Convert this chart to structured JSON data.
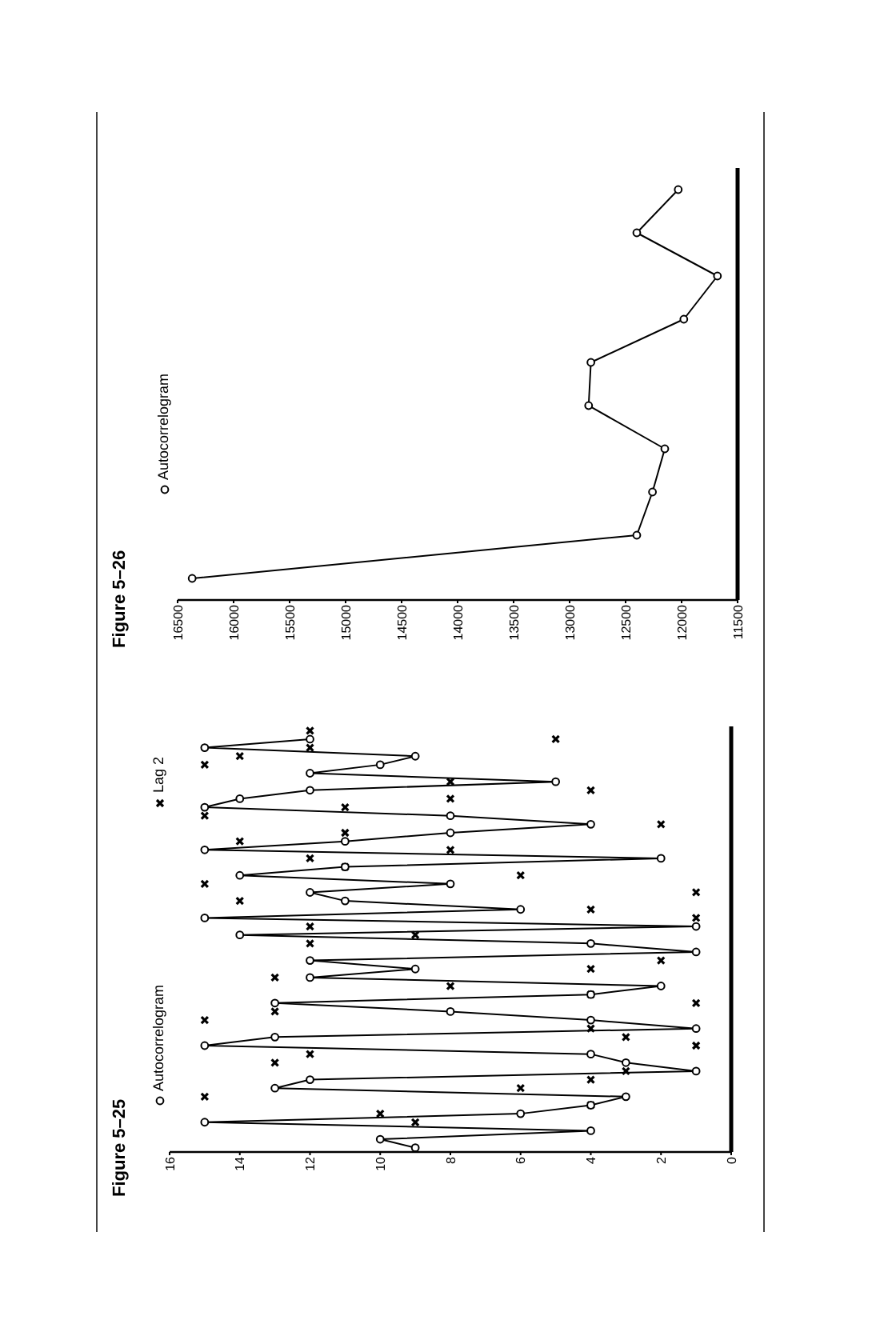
{
  "chart_data": [
    {
      "type": "line",
      "title": "Figure 5–25",
      "orientation": "horizontal",
      "categories": [
        null,
        null,
        null,
        null,
        null,
        null,
        null,
        null,
        null,
        null,
        null,
        null,
        null,
        null,
        null,
        null,
        null,
        null,
        null,
        null,
        null,
        null,
        null,
        null,
        null,
        null,
        null,
        null,
        null,
        null,
        null,
        null,
        null,
        null,
        null,
        null,
        null,
        null,
        null,
        null,
        null,
        null,
        null,
        null,
        null,
        null,
        null,
        null,
        null,
        null
      ],
      "xlim": [
        16,
        0
      ],
      "xticks": [
        16,
        14,
        12,
        10,
        8,
        6,
        4,
        2,
        0
      ],
      "tick_labels": "x",
      "legend": "left",
      "series": [
        {
          "name": "Autocorrelogram",
          "color": "#000000",
          "marker": "circle",
          "values": [
            null,
            12,
            15,
            9,
            10,
            12,
            5,
            12,
            14,
            15,
            8,
            4,
            8,
            11,
            15,
            2,
            11,
            14,
            8,
            12,
            11,
            6,
            15,
            1,
            14,
            4,
            1,
            12,
            9,
            12,
            2,
            4,
            13,
            8,
            4,
            1,
            13,
            15,
            4,
            3,
            1,
            12,
            13,
            3,
            4,
            6,
            15,
            4,
            10,
            9
          ]
        },
        {
          "name": "Lag 2",
          "type": "scatter",
          "color": "#000000",
          "marker": "cross",
          "values": [
            12,
            5,
            12,
            14,
            15,
            null,
            8,
            4,
            8,
            11,
            15,
            2,
            11,
            14,
            8,
            12,
            11,
            6,
            15,
            1,
            14,
            4,
            1,
            12,
            9,
            12,
            null,
            2,
            4,
            13,
            8,
            4,
            1,
            13,
            15,
            4,
            3,
            1,
            12,
            13,
            3,
            4,
            6,
            15,
            4,
            10,
            9,
            null,
            null,
            null
          ]
        }
      ]
    },
    {
      "type": "line",
      "title": "Figure 5–26",
      "orientation": "horizontal",
      "categories": [
        null,
        null,
        null,
        null,
        null,
        null,
        null,
        null,
        null,
        null
      ],
      "xlim": [
        16500,
        11500
      ],
      "xticks": [
        16500,
        16000,
        15500,
        15000,
        14500,
        14000,
        13500,
        13000,
        12500,
        12000,
        11500
      ],
      "tick_labels": "x",
      "legend": "left",
      "series": [
        {
          "name": "Autocorrelogram",
          "color": "#000000",
          "marker": "circle",
          "values": [
            12030,
            12400,
            11680,
            11980,
            12810,
            12830,
            12150,
            12260,
            12400,
            16370
          ]
        }
      ]
    }
  ]
}
